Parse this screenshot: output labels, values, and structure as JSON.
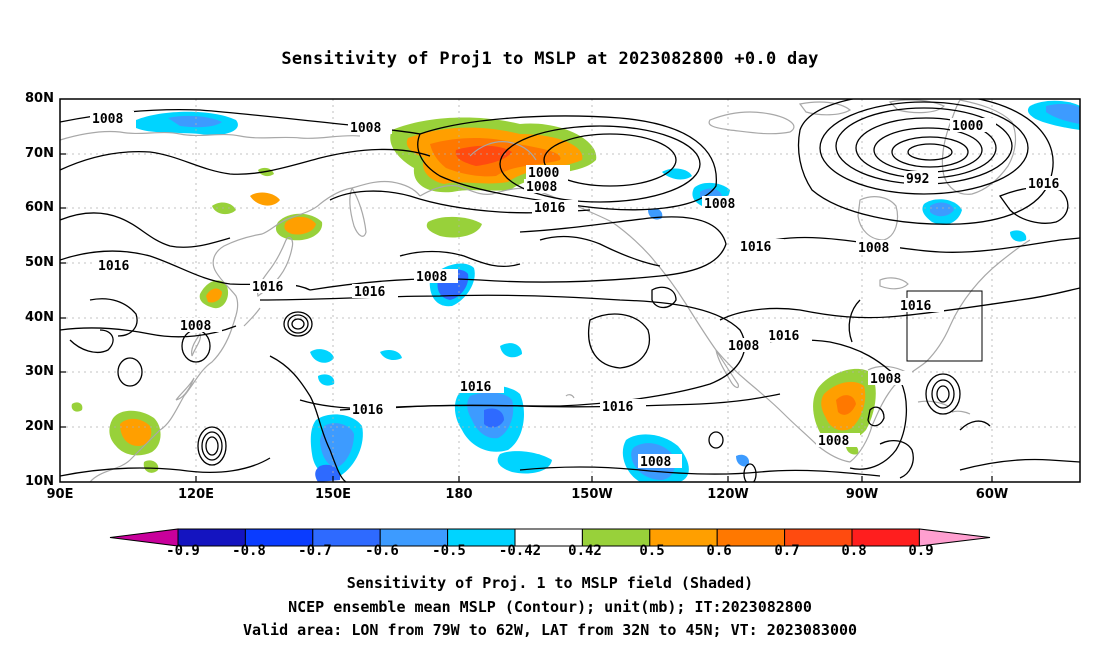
{
  "title": "Sensitivity of Proj1 to MSLP at 2023082800 +0.0 day",
  "lat_labels": [
    "80N",
    "70N",
    "60N",
    "50N",
    "40N",
    "30N",
    "20N",
    "10N"
  ],
  "lon_labels": [
    "90E",
    "120E",
    "150E",
    "180",
    "150W",
    "120W",
    "90W",
    "60W"
  ],
  "contour_labels": [
    "1008",
    "1008",
    "1000",
    "1008",
    "1016",
    "1016",
    "1008",
    "1016",
    "1016",
    "1008",
    "1008",
    "1016",
    "1016",
    "1016",
    "1008",
    "1016",
    "1016",
    "1016",
    "1008",
    "1008",
    "1008",
    "1000",
    "992",
    "1016",
    "1008"
  ],
  "colorbar": {
    "labels": [
      "-0.9",
      "-0.8",
      "-0.7",
      "-0.6",
      "-0.5",
      "-0.42",
      "0.42",
      "0.5",
      "0.6",
      "0.7",
      "0.8",
      "0.9"
    ],
    "colors": [
      "#c8009b",
      "#1414c0",
      "#0a3cff",
      "#2e6aff",
      "#3d9bff",
      "#00d4ff",
      "#ffffff",
      "#98d13a",
      "#ff9f00",
      "#ff7800",
      "#ff4b0f",
      "#ff1e1e",
      "#ff9fd0"
    ]
  },
  "captions": [
    "Sensitivity of Proj. 1 to MSLP field (Shaded)",
    "NCEP ensemble mean MSLP (Contour); unit(mb); IT:2023082800",
    "Valid area: LON from 79W to 62W, LAT from 32N to 45N; VT: 2023083000"
  ]
}
